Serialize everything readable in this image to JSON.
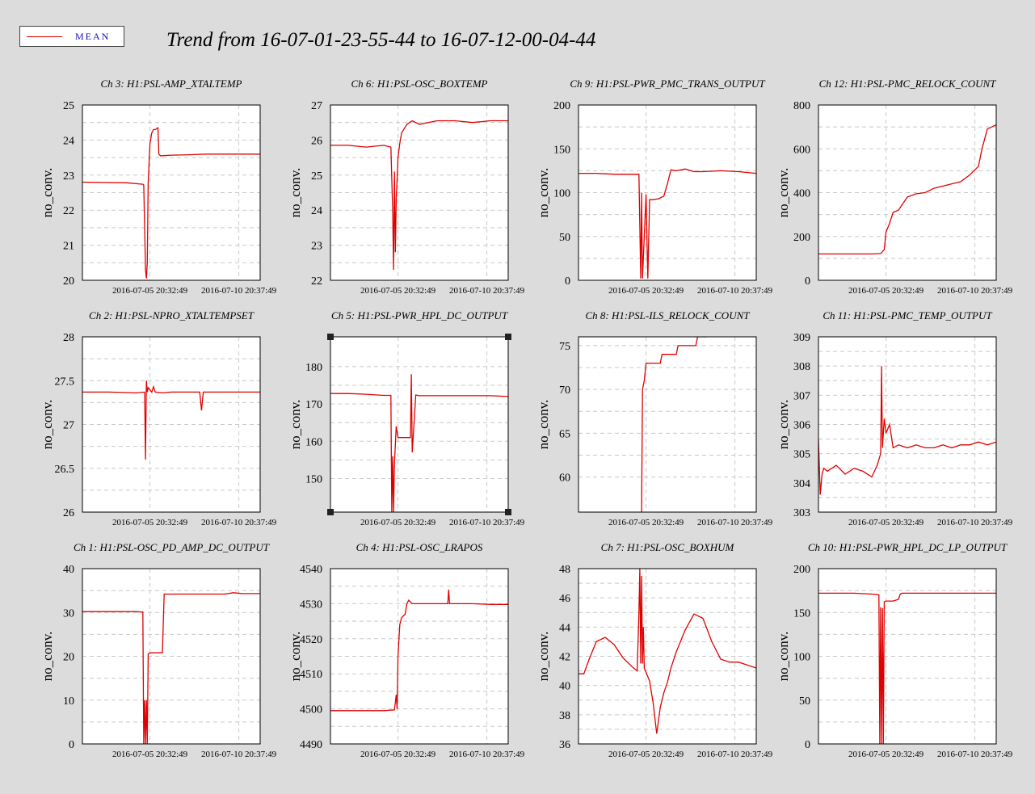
{
  "title": "Trend from 16-07-01-23-55-44 to 16-07-12-00-04-44",
  "legend": {
    "label": "MEAN",
    "color": "#e00000"
  },
  "colors": {
    "background": "#dcdcdc",
    "plot_bg": "#ffffff",
    "series": "#e00000",
    "grid": "#c8c8c8",
    "legend_text": "#1010c0"
  },
  "chart_data": [
    {
      "type": "line",
      "title": "Ch 3: H1:PSL-AMP_XTALTEMP",
      "ylabel": "no_conv.",
      "ylim": [
        20,
        25
      ],
      "yticks": [
        20,
        21,
        22,
        23,
        24,
        25
      ],
      "xticks": [
        "2016-07-05 20:32:49",
        "2016-07-10 20:37:49"
      ],
      "grid": true,
      "x": [
        0,
        0.25,
        0.34,
        0.345,
        0.352,
        0.355,
        0.36,
        0.365,
        0.37,
        0.38,
        0.39,
        0.4,
        0.41,
        0.425,
        0.43,
        0.44,
        0.5,
        0.6,
        0.7,
        0.8,
        0.9,
        1
      ],
      "values": [
        22.8,
        22.78,
        22.74,
        22.72,
        21.1,
        20.3,
        20.05,
        20.5,
        22.8,
        23.9,
        24.2,
        24.3,
        24.3,
        24.35,
        23.6,
        23.55,
        23.57,
        23.58,
        23.6,
        23.6,
        23.6,
        23.6
      ]
    },
    {
      "type": "line",
      "title": "Ch 6: H1:PSL-OSC_BOXTEMP",
      "ylabel": "no_conv.",
      "ylim": [
        22,
        27
      ],
      "yticks": [
        22,
        23,
        24,
        25,
        26,
        27
      ],
      "xticks": [
        "2016-07-05 20:32:49",
        "2016-07-10 20:37:49"
      ],
      "grid": true,
      "x": [
        0,
        0.1,
        0.2,
        0.3,
        0.34,
        0.35,
        0.355,
        0.36,
        0.365,
        0.37,
        0.38,
        0.39,
        0.4,
        0.43,
        0.46,
        0.5,
        0.55,
        0.6,
        0.7,
        0.8,
        0.9,
        1
      ],
      "values": [
        25.85,
        25.85,
        25.8,
        25.85,
        25.8,
        24.0,
        22.3,
        25.1,
        22.8,
        24.3,
        25.5,
        25.9,
        26.2,
        26.45,
        26.55,
        26.45,
        26.5,
        26.55,
        26.55,
        26.5,
        26.55,
        26.55
      ]
    },
    {
      "type": "line",
      "title": "Ch 9: H1:PSL-PWR_PMC_TRANS_OUTPUT",
      "ylabel": "no_conv.",
      "ylim": [
        0,
        200
      ],
      "yticks": [
        0,
        50,
        100,
        150,
        200
      ],
      "xticks": [
        "2016-07-05 20:32:49",
        "2016-07-10 20:37:49"
      ],
      "grid": true,
      "x": [
        0,
        0.1,
        0.2,
        0.3,
        0.34,
        0.35,
        0.355,
        0.36,
        0.38,
        0.39,
        0.4,
        0.42,
        0.45,
        0.48,
        0.5,
        0.52,
        0.55,
        0.6,
        0.65,
        0.7,
        0.8,
        0.9,
        1
      ],
      "values": [
        122,
        122,
        121,
        121,
        121,
        2,
        100,
        2,
        98,
        2,
        92,
        92,
        93,
        96,
        110,
        126,
        125,
        127,
        124,
        124,
        125,
        124,
        122
      ]
    },
    {
      "type": "line",
      "title": "Ch 12: H1:PSL-PMC_RELOCK_COUNT",
      "ylabel": "no_conv.",
      "ylim": [
        0,
        800
      ],
      "yticks": [
        0,
        200,
        400,
        600,
        800
      ],
      "xticks": [
        "2016-07-05 20:32:49",
        "2016-07-10 20:37:49"
      ],
      "grid": true,
      "x": [
        0,
        0.1,
        0.2,
        0.3,
        0.35,
        0.37,
        0.38,
        0.4,
        0.42,
        0.45,
        0.5,
        0.55,
        0.6,
        0.65,
        0.7,
        0.75,
        0.8,
        0.85,
        0.9,
        0.92,
        0.95,
        1
      ],
      "values": [
        120,
        120,
        120,
        120,
        122,
        140,
        220,
        260,
        310,
        320,
        380,
        395,
        400,
        420,
        430,
        440,
        450,
        480,
        520,
        600,
        690,
        710
      ]
    },
    {
      "type": "line",
      "title": "Ch 2: H1:PSL-NPRO_XTALTEMPSET",
      "ylabel": "no_conv.",
      "ylim": [
        26,
        28
      ],
      "yticks": [
        26,
        26.5,
        27,
        27.5,
        28
      ],
      "xticks": [
        "2016-07-05 20:32:49",
        "2016-07-10 20:37:49"
      ],
      "grid": true,
      "x": [
        0,
        0.15,
        0.3,
        0.35,
        0.355,
        0.36,
        0.365,
        0.37,
        0.39,
        0.4,
        0.41,
        0.45,
        0.5,
        0.6,
        0.66,
        0.67,
        0.68,
        0.8,
        0.9,
        1
      ],
      "values": [
        27.37,
        27.37,
        27.36,
        27.37,
        26.6,
        27.5,
        27.37,
        27.42,
        27.37,
        27.43,
        27.37,
        27.36,
        27.37,
        27.37,
        27.37,
        27.16,
        27.37,
        27.37,
        27.37,
        27.37
      ]
    },
    {
      "type": "line",
      "title": "Ch 5: H1:PSL-PWR_HPL_DC_OUTPUT",
      "ylabel": "no_conv.",
      "ylim": [
        141,
        188
      ],
      "yticks": [
        150,
        160,
        170,
        180
      ],
      "xticks": [
        "2016-07-05 20:32:49",
        "2016-07-10 20:37:49"
      ],
      "grid": true,
      "x": [
        0,
        0.1,
        0.2,
        0.3,
        0.34,
        0.345,
        0.35,
        0.355,
        0.36,
        0.37,
        0.38,
        0.4,
        0.45,
        0.455,
        0.46,
        0.48,
        0.5,
        0.6,
        0.7,
        0.8,
        0.9,
        1
      ],
      "values": [
        172.8,
        172.8,
        172.6,
        172.3,
        172.3,
        141,
        156,
        141,
        154,
        164,
        161,
        161,
        161,
        178,
        157,
        172.4,
        172.2,
        172.2,
        172.2,
        172.2,
        172.2,
        172.0
      ]
    },
    {
      "type": "line",
      "title": "Ch 8: H1:PSL-ILS_RELOCK_COUNT",
      "ylabel": "no_conv.",
      "ylim": [
        56,
        76
      ],
      "yticks": [
        60,
        65,
        70,
        75
      ],
      "xticks": [
        "2016-07-05 20:32:49",
        "2016-07-10 20:37:49"
      ],
      "grid": true,
      "x": [
        0.355,
        0.36,
        0.37,
        0.38,
        0.46,
        0.47,
        0.55,
        0.56,
        0.66,
        0.67,
        0.72
      ],
      "values": [
        56,
        70,
        71,
        73,
        73,
        74,
        74,
        75,
        75,
        76,
        76
      ]
    },
    {
      "type": "line",
      "title": "Ch 11: H1:PSL-PMC_TEMP_OUTPUT",
      "ylabel": "no_conv.",
      "ylim": [
        303,
        309
      ],
      "yticks": [
        303,
        304,
        305,
        306,
        307,
        308,
        309
      ],
      "xticks": [
        "2016-07-05 20:32:49",
        "2016-07-10 20:37:49"
      ],
      "grid": true,
      "x": [
        0,
        0.01,
        0.02,
        0.03,
        0.05,
        0.1,
        0.15,
        0.2,
        0.25,
        0.3,
        0.33,
        0.35,
        0.355,
        0.36,
        0.37,
        0.38,
        0.4,
        0.42,
        0.45,
        0.5,
        0.55,
        0.6,
        0.65,
        0.7,
        0.75,
        0.8,
        0.85,
        0.9,
        0.95,
        1
      ],
      "values": [
        305.5,
        303.6,
        304.3,
        304.5,
        304.4,
        304.6,
        304.3,
        304.5,
        304.4,
        304.2,
        304.6,
        305.0,
        308.0,
        305.2,
        306.2,
        305.7,
        306.0,
        305.2,
        305.3,
        305.2,
        305.3,
        305.2,
        305.2,
        305.3,
        305.2,
        305.3,
        305.3,
        305.4,
        305.3,
        305.4
      ]
    },
    {
      "type": "line",
      "title": "Ch 1: H1:PSL-OSC_PD_AMP_DC_OUTPUT",
      "ylabel": "no_conv.",
      "ylim": [
        0,
        40
      ],
      "yticks": [
        0,
        10,
        20,
        30,
        40
      ],
      "xticks": [
        "2016-07-05 20:32:49",
        "2016-07-10 20:37:49"
      ],
      "grid": true,
      "x": [
        0,
        0.1,
        0.2,
        0.3,
        0.34,
        0.345,
        0.35,
        0.355,
        0.36,
        0.365,
        0.37,
        0.38,
        0.41,
        0.45,
        0.46,
        0.5,
        0.6,
        0.7,
        0.8,
        0.85,
        0.9,
        1
      ],
      "values": [
        30.2,
        30.2,
        30.2,
        30.2,
        30.1,
        0,
        10,
        0,
        10,
        0,
        20.5,
        20.8,
        20.8,
        20.8,
        34.2,
        34.2,
        34.2,
        34.2,
        34.2,
        34.5,
        34.3,
        34.3
      ]
    },
    {
      "type": "line",
      "title": "Ch 4: H1:PSL-OSC_LRAPOS",
      "ylabel": "no_conv.",
      "ylim": [
        4490,
        4540
      ],
      "yticks": [
        4490,
        4500,
        4510,
        4520,
        4530,
        4540
      ],
      "xticks": [
        "2016-07-05 20:32:49",
        "2016-07-10 20:37:49"
      ],
      "grid": true,
      "x": [
        0,
        0.1,
        0.2,
        0.3,
        0.36,
        0.37,
        0.375,
        0.38,
        0.39,
        0.4,
        0.42,
        0.43,
        0.44,
        0.46,
        0.47,
        0.5,
        0.6,
        0.66,
        0.665,
        0.67,
        0.8,
        0.9,
        1
      ],
      "values": [
        4499.5,
        4499.5,
        4499.5,
        4499.5,
        4499.7,
        4504,
        4500,
        4515,
        4524,
        4526,
        4527,
        4530,
        4531,
        4530,
        4530,
        4530,
        4530,
        4530,
        4534,
        4530,
        4530,
        4529.8,
        4529.8
      ]
    },
    {
      "type": "line",
      "title": "Ch 7: H1:PSL-OSC_BOXHUM",
      "ylabel": "no_conv.",
      "ylim": [
        36,
        48
      ],
      "yticks": [
        36,
        38,
        40,
        42,
        44,
        46,
        48
      ],
      "xticks": [
        "2016-07-05 20:32:49",
        "2016-07-10 20:37:49"
      ],
      "grid": true,
      "x": [
        0,
        0.03,
        0.06,
        0.1,
        0.15,
        0.2,
        0.25,
        0.3,
        0.33,
        0.34,
        0.345,
        0.35,
        0.355,
        0.36,
        0.365,
        0.37,
        0.4,
        0.42,
        0.44,
        0.46,
        0.48,
        0.5,
        0.52,
        0.55,
        0.6,
        0.65,
        0.7,
        0.75,
        0.8,
        0.85,
        0.9,
        0.95,
        1
      ],
      "values": [
        40.8,
        40.8,
        41.8,
        43.0,
        43.3,
        42.8,
        41.9,
        41.3,
        41.0,
        45,
        48,
        41.5,
        47.5,
        41.5,
        44,
        41.2,
        40.3,
        38.8,
        36.7,
        38.5,
        39.5,
        40.2,
        41.2,
        42.3,
        43.8,
        44.9,
        44.6,
        43.0,
        41.8,
        41.6,
        41.6,
        41.4,
        41.2
      ]
    },
    {
      "type": "line",
      "title": "Ch 10: H1:PSL-PWR_HPL_DC_LP_OUTPUT",
      "ylabel": "no_conv.",
      "ylim": [
        0,
        200
      ],
      "yticks": [
        0,
        50,
        100,
        150,
        200
      ],
      "xticks": [
        "2016-07-05 20:32:49",
        "2016-07-10 20:37:49"
      ],
      "grid": true,
      "x": [
        0,
        0.1,
        0.2,
        0.3,
        0.34,
        0.345,
        0.35,
        0.355,
        0.36,
        0.365,
        0.37,
        0.38,
        0.4,
        0.42,
        0.45,
        0.46,
        0.47,
        0.5,
        0.6,
        0.7,
        0.8,
        0.9,
        1
      ],
      "values": [
        172,
        172,
        172,
        171,
        170,
        0,
        156,
        0,
        155,
        0,
        162,
        163,
        163,
        163,
        165,
        171,
        172,
        172,
        172,
        172,
        172,
        172,
        172
      ]
    }
  ]
}
